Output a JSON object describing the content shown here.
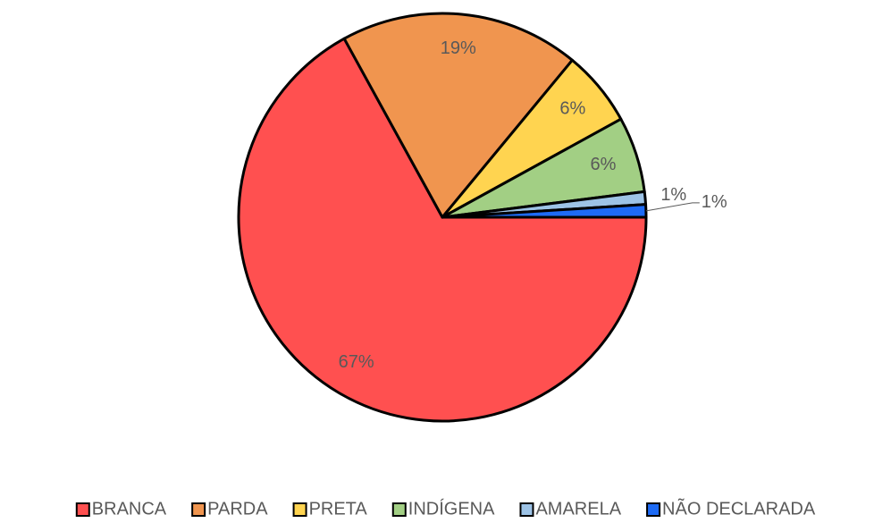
{
  "chart_data": {
    "type": "pie",
    "categories": [
      "BRANCA",
      "PARDA",
      "PRETA",
      "INDÍGENA",
      "AMARELA",
      "NÃO DECLARADA"
    ],
    "values": [
      67,
      19,
      6,
      6,
      1,
      1
    ],
    "value_labels": [
      "67%",
      "19%",
      "6%",
      "6%",
      "1%",
      "1%"
    ],
    "colors": [
      "#ff5050",
      "#f0954f",
      "#ffd450",
      "#a2cf84",
      "#9dc3e6",
      "#1e6bf5"
    ],
    "legend": "bottom"
  }
}
